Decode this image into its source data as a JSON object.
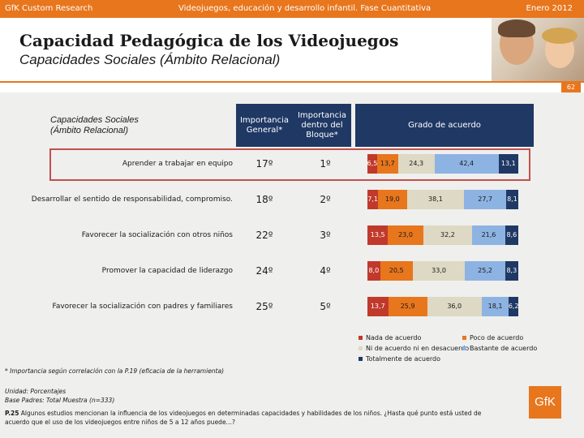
{
  "header": {
    "left": "GfK Custom Research",
    "center": "Videojuegos, educación y desarrollo infantil. Fase Cuantitativa",
    "right": "Enero 2012"
  },
  "title": "Capacidad Pedagógica de los Videojuegos",
  "subtitle": "Capacidades Sociales (Ámbito Relacional)",
  "page_number": "62",
  "table": {
    "left_header": [
      "Capacidades Sociales",
      "(Ámbito Relacional)"
    ],
    "col_importance": [
      "Importancia",
      "General*"
    ],
    "col_block": [
      "Importancia",
      "dentro del",
      "Bloque*"
    ],
    "col_agree": "Grado de acuerdo"
  },
  "chart_data": {
    "type": "bar",
    "stacked": true,
    "orientation": "horizontal",
    "title": "Grado de acuerdo",
    "categories": [
      "Aprender a trabajar en equipo",
      "Desarrollar el sentido de responsabilidad, compromiso.",
      "Favorecer la socialización con otros niños",
      "Promover la capacidad de liderazgo",
      "Favorecer la socialización con padres y familiares"
    ],
    "importance_general": [
      "17º",
      "18º",
      "22º",
      "24º",
      "25º"
    ],
    "importance_block": [
      "1º",
      "2º",
      "3º",
      "4º",
      "5º"
    ],
    "series": [
      {
        "name": "Nada de acuerdo",
        "color": "#c0392b",
        "values": [
          6.5,
          7.1,
          13.5,
          8.0,
          13.7
        ],
        "labels": [
          "6,5",
          "7,1",
          "13,5",
          "8,0",
          "13,7"
        ]
      },
      {
        "name": "Poco de acuerdo",
        "color": "#e8761d",
        "values": [
          13.7,
          19.0,
          23.0,
          20.5,
          25.9
        ],
        "labels": [
          "13,7",
          "19,0",
          "23,0",
          "20,5",
          "25,9"
        ]
      },
      {
        "name": "Ni de acuerdo ni en desacuerdo",
        "color": "#ddd9c4",
        "values": [
          24.3,
          38.1,
          32.2,
          33.0,
          36.0
        ],
        "labels": [
          "24,3",
          "38,1",
          "32,2",
          "33,0",
          "36,0"
        ]
      },
      {
        "name": "Bastante de acuerdo",
        "color": "#8db3e2",
        "values": [
          42.4,
          27.7,
          21.6,
          25.2,
          18.1
        ],
        "labels": [
          "42,4",
          "27,7",
          "21,6",
          "25,2",
          "18,1"
        ]
      },
      {
        "name": "Totalmente de acuerdo",
        "color": "#1f3864",
        "values": [
          13.1,
          8.1,
          8.6,
          8.3,
          6.2
        ],
        "labels": [
          "13,1",
          "8,1",
          "8,6",
          "8,3",
          "6,2"
        ]
      }
    ],
    "highlighted_row": "Aprender a trabajar en equipo"
  },
  "footnote": "* Importancia según correlación con la P.19 (eficacia de la herramienta)",
  "unit": "Unidad: Porcentajes",
  "base": "Base Padres: Total Muestra (n=333)",
  "question_label": "P.25",
  "question_text": "Algunos estudios mencionan la influencia de los videojuegos en determinadas capacidades y habilidades de los niños. ¿Hasta qué punto está usted de acuerdo que el uso de los videojuegos entre niños de 5 a 12 años puede…?",
  "logo": "GfK"
}
